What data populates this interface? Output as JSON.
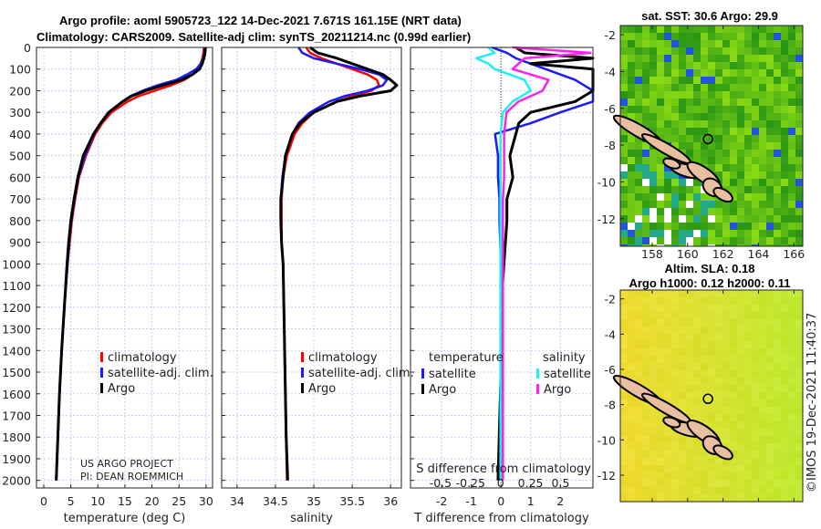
{
  "header": {
    "title_line1": "Argo profile: aoml 5905723_122 14-Dec-2021 7.671S 161.15E (NRT data)",
    "title_line2": "Climatology: CARS2009. Satellite-adj clim: synTS_20211214.nc (0.99d earlier)"
  },
  "credit": {
    "project": "US ARGO PROJECT",
    "pi": "PI: DEAN ROEMMICH",
    "stamp": "©IMOS 19-Dec-2021 11:40:37"
  },
  "colors": {
    "climatology": "#ff0000",
    "satellite": "#1a1aff",
    "argo": "#000000",
    "sal_satellite": "#22eeee",
    "sal_argo": "#ff22ee",
    "grid": "#b8c4ee",
    "island": "#e8bfa0"
  },
  "chart_data": [
    {
      "type": "line",
      "name": "temperature",
      "xlabel": "temperature (deg C)",
      "xlim": [
        -1.35,
        31.2
      ],
      "ylim": [
        0,
        2035
      ],
      "xticks": [
        0,
        5,
        10,
        15,
        20,
        25,
        30
      ],
      "yticks": [
        0,
        100,
        200,
        300,
        400,
        500,
        600,
        700,
        800,
        900,
        1000,
        1100,
        1200,
        1300,
        1400,
        1500,
        1600,
        1700,
        1800,
        1900,
        2000
      ],
      "depth": [
        0,
        25,
        50,
        75,
        100,
        125,
        150,
        175,
        200,
        225,
        250,
        300,
        350,
        400,
        500,
        600,
        700,
        800,
        900,
        1000,
        1200,
        1400,
        1600,
        1800,
        2000
      ],
      "series": [
        {
          "name": "climatology",
          "values": [
            29.6,
            29.5,
            29.3,
            29.0,
            28.5,
            27.5,
            26,
            23.5,
            20.5,
            17.5,
            15.5,
            12.5,
            10.8,
            9.5,
            7.8,
            6.5,
            5.8,
            5.2,
            4.8,
            4.4,
            3.8,
            3.3,
            2.9,
            2.6,
            2.3
          ]
        },
        {
          "name": "satellite-adj. clim.",
          "values": [
            29.8,
            29.7,
            29.5,
            29.0,
            28.2,
            26.5,
            24.5,
            21,
            18.3,
            16,
            14.5,
            12,
            10.5,
            9.3,
            7.6,
            6.4,
            5.7,
            5.1,
            4.7,
            4.4,
            3.8,
            3.3,
            2.9,
            2.6,
            2.3
          ]
        },
        {
          "name": "Argo",
          "values": [
            29.9,
            29.8,
            29.6,
            29.3,
            28.8,
            27.5,
            25.5,
            22,
            18.8,
            16.2,
            14.6,
            12,
            10.5,
            9.2,
            7.3,
            6.3,
            5.6,
            5.0,
            4.6,
            4.3,
            3.8,
            3.3,
            2.9,
            2.6,
            2.3
          ]
        }
      ],
      "legend": [
        "climatology",
        "satellite-adj. clim.",
        "Argo"
      ]
    },
    {
      "type": "line",
      "name": "salinity",
      "xlabel": "salinity",
      "xlim": [
        33.8,
        36.14
      ],
      "ylim": [
        0,
        2035
      ],
      "xticks": [
        34,
        34.5,
        35,
        35.5,
        36
      ],
      "depth": [
        0,
        25,
        50,
        75,
        100,
        125,
        150,
        175,
        200,
        225,
        250,
        300,
        350,
        400,
        500,
        600,
        700,
        800,
        900,
        1000,
        1200,
        1400,
        1600,
        1800,
        2000
      ],
      "series": [
        {
          "name": "climatology",
          "values": [
            34.9,
            34.95,
            35.1,
            35.3,
            35.5,
            35.7,
            35.82,
            35.85,
            35.75,
            35.5,
            35.3,
            35.0,
            34.85,
            34.75,
            34.65,
            34.6,
            34.58,
            34.58,
            34.58,
            34.6,
            34.61,
            34.62,
            34.63,
            34.64,
            34.65
          ]
        },
        {
          "name": "satellite-adj. clim.",
          "values": [
            34.8,
            34.85,
            35.0,
            35.3,
            35.6,
            35.85,
            35.95,
            35.9,
            35.7,
            35.4,
            35.2,
            34.95,
            34.8,
            34.72,
            34.63,
            34.59,
            34.57,
            34.57,
            34.58,
            34.6,
            34.61,
            34.62,
            34.63,
            34.64,
            34.66
          ]
        },
        {
          "name": "Argo",
          "values": [
            34.95,
            35.05,
            35.3,
            35.5,
            35.7,
            35.9,
            36.0,
            36.08,
            36.0,
            35.6,
            35.3,
            35.0,
            34.82,
            34.72,
            34.63,
            34.6,
            34.57,
            34.57,
            34.58,
            34.6,
            34.61,
            34.62,
            34.63,
            34.64,
            34.66
          ]
        }
      ],
      "legend": [
        "climatology",
        "satellite-adj. clim.",
        "Argo"
      ]
    },
    {
      "type": "line",
      "name": "difference",
      "xlabel": "T difference from climatology",
      "xlabel_top": "S difference from climatology",
      "xlim": [
        -3.05,
        3.1
      ],
      "xlim_s": [
        -0.75,
        0.77
      ],
      "ylim": [
        0,
        2035
      ],
      "xticks": [
        -2,
        -1,
        0,
        1,
        2
      ],
      "xticks_s": [
        -0.5,
        -0.25,
        0,
        0.25,
        0.5
      ],
      "depth": [
        0,
        25,
        50,
        75,
        100,
        150,
        200,
        250,
        300,
        350,
        400,
        500,
        600,
        700,
        800,
        1000,
        1200,
        1500,
        2000
      ],
      "series": [
        {
          "name": "temperature satellite",
          "axis": "T",
          "values": [
            -0.3,
            0.2,
            0.5,
            1.0,
            1.5,
            2.5,
            3.2,
            3.2,
            2.0,
            1.0,
            -0.2,
            -0.1,
            -0.1,
            -0.05,
            -0.05,
            0,
            0,
            0,
            0
          ]
        },
        {
          "name": "temperature Argo",
          "axis": "T",
          "values": [
            0.5,
            0.8,
            3.2,
            1.0,
            3.2,
            3.2,
            3.2,
            2.5,
            1.0,
            0.6,
            0.5,
            0.3,
            0.4,
            0.2,
            0.2,
            0.1,
            0,
            0,
            -0.1
          ]
        },
        {
          "name": "salinity satellite",
          "axis": "S",
          "values": [
            -0.1,
            -0.05,
            -0.2,
            -0.1,
            -0.05,
            0.2,
            0.25,
            0.1,
            0.02,
            0.01,
            0,
            0,
            0,
            0,
            0,
            0,
            0,
            0,
            0
          ]
        },
        {
          "name": "salinity Argo",
          "axis": "S",
          "values": [
            0.1,
            0.75,
            0.2,
            0.15,
            0.1,
            0.4,
            0.35,
            0.15,
            0.05,
            0.04,
            0.03,
            0.03,
            0.03,
            0.02,
            0.02,
            0.02,
            0.02,
            0.02,
            0.02
          ]
        }
      ],
      "legend": {
        "temperature_head": "temperature",
        "salinity_head": "salinity",
        "items": [
          "satellite",
          "Argo",
          "satellite",
          "Argo"
        ]
      }
    },
    {
      "type": "heatmap",
      "name": "sst-map",
      "title": "sat. SST: 30.6 Argo: 29.9",
      "xlim": [
        156.2,
        166.5
      ],
      "ylim": [
        -13.5,
        -1.5
      ],
      "xticks": [
        158,
        160,
        162,
        164,
        166
      ],
      "yticks": [
        -2,
        -4,
        -6,
        -8,
        -10,
        -12
      ],
      "marker": [
        161.15,
        -7.671
      ]
    },
    {
      "type": "heatmap",
      "name": "sla-map",
      "title": "Altim. SLA: 0.18",
      "subtitle": "Argo h1000: 0.12 h2000: 0.11",
      "xlim": [
        156.2,
        166.5
      ],
      "ylim": [
        -13.5,
        -1.5
      ],
      "yticks": [
        -2,
        -4,
        -6,
        -8,
        -10,
        -12
      ],
      "marker": [
        161.15,
        -7.671
      ]
    }
  ]
}
